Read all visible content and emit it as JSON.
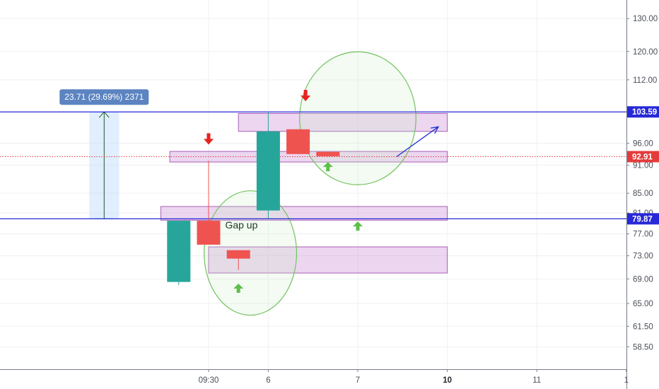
{
  "chart_data": {
    "type": "candlestick",
    "y_scale": "log",
    "ylim": [
      55.4,
      136
    ],
    "grid": true,
    "y_ticks": [
      {
        "value": 130,
        "label": "130.00"
      },
      {
        "value": 120,
        "label": "120.00"
      },
      {
        "value": 112,
        "label": "112.00"
      },
      {
        "value": 96,
        "label": "96.00"
      },
      {
        "value": 91,
        "label": "91.00"
      },
      {
        "value": 85,
        "label": "85.00"
      },
      {
        "value": 81,
        "label": "81.00"
      },
      {
        "value": 77,
        "label": "77.00"
      },
      {
        "value": 73,
        "label": "73.00"
      },
      {
        "value": 69,
        "label": "69.00"
      },
      {
        "value": 65,
        "label": "65.00"
      },
      {
        "value": 61.5,
        "label": "61.50"
      },
      {
        "value": 58.5,
        "label": "58.50"
      }
    ],
    "x_ticks": [
      {
        "slot": 0,
        "label": "09:30",
        "bold": false
      },
      {
        "slot": 2,
        "label": "6",
        "bold": false
      },
      {
        "slot": 5,
        "label": "7",
        "bold": false
      },
      {
        "slot": 8,
        "label": "10",
        "bold": true
      },
      {
        "slot": 11,
        "label": "11",
        "bold": false
      },
      {
        "slot": 14,
        "label": "1",
        "bold": false
      }
    ],
    "candles": [
      {
        "slot": -1,
        "open": 68.5,
        "high": 79.5,
        "low": 68.0,
        "close": 79.5
      },
      {
        "slot": 0,
        "open": 79.5,
        "high": 92.0,
        "low": 75.0,
        "close": 75.0
      },
      {
        "slot": 1,
        "open": 74.0,
        "high": 74.0,
        "low": 70.5,
        "close": 72.5
      },
      {
        "slot": 2,
        "open": 81.5,
        "high": 103.59,
        "low": 79.9,
        "close": 98.8
      },
      {
        "slot": 3,
        "open": 99.3,
        "high": 99.3,
        "low": 93.5,
        "close": 93.5
      },
      {
        "slot": 4,
        "open": 94.0,
        "high": 94.0,
        "low": 93.0,
        "close": 93.0
      }
    ],
    "horizontal_lines": [
      {
        "value": 103.59,
        "label": "103.59",
        "color": "#2828d8"
      },
      {
        "value": 79.87,
        "label": "79.87",
        "color": "#2828d8"
      }
    ],
    "last_price": {
      "value": 92.91,
      "label": "92.91",
      "color": "#e43c3c"
    },
    "zones": [
      {
        "top": 103.2,
        "bottom": 98.8,
        "from_slot": 1.0,
        "to_slot": 8.0
      },
      {
        "top": 94.1,
        "bottom": 91.7,
        "from_slot": -1.3,
        "to_slot": 8.0
      },
      {
        "top": 82.3,
        "bottom": 79.6,
        "from_slot": -1.6,
        "to_slot": 8.0
      },
      {
        "top": 74.6,
        "bottom": 70.0,
        "from_slot": 0.0,
        "to_slot": 8.0
      }
    ],
    "measure": {
      "from": 79.87,
      "to": 103.59,
      "from_slot": -4.0,
      "to_slot": -3.0,
      "label": "23.71 (29.69%) 2371"
    },
    "annotations": [
      {
        "type": "text",
        "text": "Gap up",
        "slot": 1.1,
        "value": 78.0
      },
      {
        "type": "arrow-down",
        "color": "#e8221f",
        "slot": 0.0,
        "value": 97.0
      },
      {
        "type": "arrow-down",
        "color": "#e8221f",
        "slot": 3.25,
        "value": 107.8
      },
      {
        "type": "arrow-up",
        "color": "#5ec04a",
        "slot": 1.0,
        "value": 67.4
      },
      {
        "type": "arrow-up",
        "color": "#5ec04a",
        "slot": 4.0,
        "value": 90.6
      },
      {
        "type": "arrow-up",
        "color": "#5ec04a",
        "slot": 5.0,
        "value": 78.4
      }
    ],
    "circles": [
      {
        "cx_slot": 1.4,
        "cy_value": 73.5,
        "rx_slots": 1.55,
        "ry_px": 88
      },
      {
        "cx_slot": 5.0,
        "cy_value": 102.0,
        "rx_slots": 1.95,
        "ry_px": 94
      }
    ],
    "trend_arrow": {
      "from_slot": 6.3,
      "from_value": 92.9,
      "to_slot": 7.7,
      "to_value": 99.9,
      "color": "#1e2fd0"
    }
  }
}
